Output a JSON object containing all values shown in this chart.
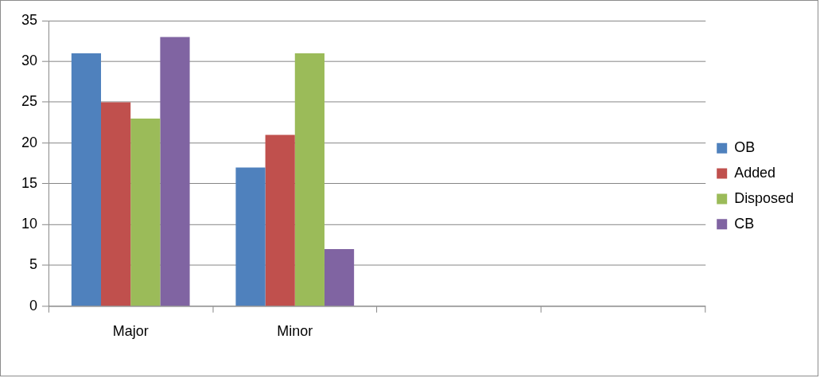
{
  "chart_data": {
    "type": "bar",
    "categories": [
      "Major",
      "Minor",
      null,
      null
    ],
    "series": [
      {
        "name": "OB",
        "color": "#4f81bd",
        "values": [
          31,
          17,
          null,
          null
        ]
      },
      {
        "name": "Added",
        "color": "#c0504d",
        "values": [
          25,
          21,
          null,
          null
        ]
      },
      {
        "name": "Disposed",
        "color": "#9bbb59",
        "values": [
          23,
          31,
          null,
          null
        ]
      },
      {
        "name": "CB",
        "color": "#8064a2",
        "values": [
          33,
          7,
          null,
          null
        ]
      }
    ],
    "ylim": [
      0,
      35
    ],
    "yticks": [
      0,
      5,
      10,
      15,
      20,
      25,
      30,
      35
    ],
    "grid": "y",
    "legend": "right"
  }
}
